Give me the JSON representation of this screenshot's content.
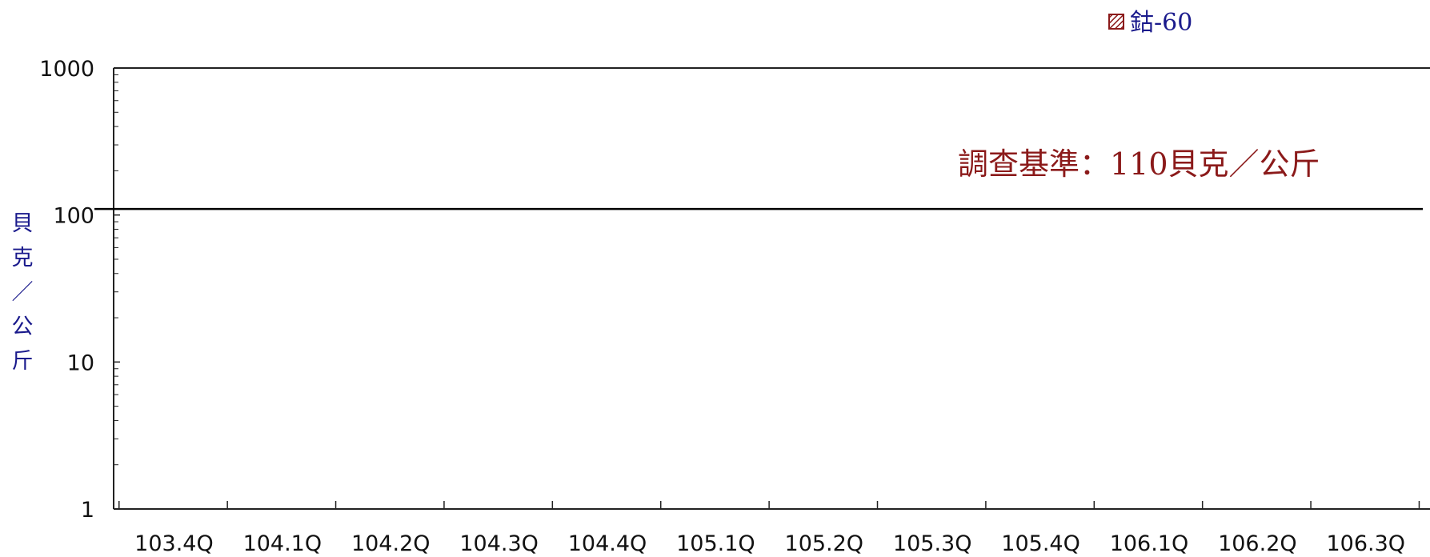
{
  "chart_data": {
    "type": "bar",
    "categories": [
      "103.4Q",
      "104.1Q",
      "104.2Q",
      "104.3Q",
      "104.4Q",
      "105.1Q",
      "105.2Q",
      "105.3Q",
      "105.4Q",
      "106.1Q",
      "106.2Q",
      "106.3Q"
    ],
    "series": [
      {
        "name": "鈷-60",
        "values": [
          null,
          null,
          null,
          null,
          null,
          null,
          null,
          null,
          null,
          null,
          null,
          null
        ],
        "color": "#8b1a1a",
        "pattern": "hatched"
      }
    ],
    "ylabel": "貝克／公斤",
    "ylabel_chars": [
      "貝",
      "克",
      "／",
      "公",
      "斤"
    ],
    "yscale": "log",
    "ylim": [
      1,
      1000
    ],
    "yticks": [
      1,
      10,
      100,
      1000
    ],
    "ytick_labels": [
      "1",
      "10",
      "100",
      "1000"
    ],
    "reference_line": {
      "value": 110,
      "label": "調查基準：110貝克／公斤",
      "color": "#000000"
    },
    "legend": {
      "position": "top-right",
      "entries": [
        "鈷-60"
      ]
    },
    "grid": false
  }
}
